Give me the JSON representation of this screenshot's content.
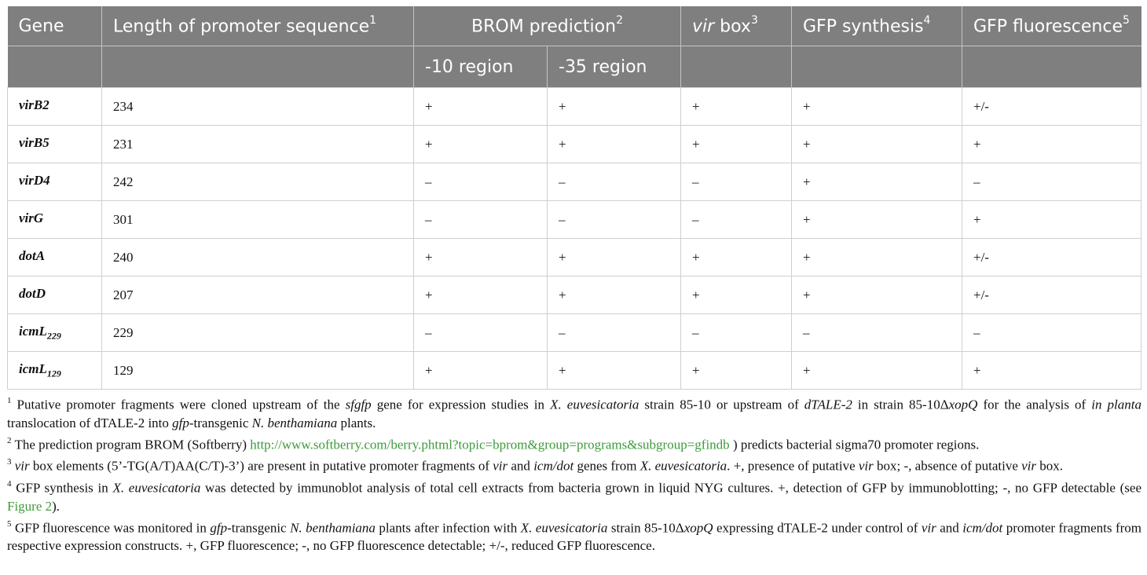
{
  "table": {
    "headers": {
      "gene": "Gene",
      "length": "Length of promoter sequence",
      "length_sup": "1",
      "brom": "BROM prediction",
      "brom_sup": "2",
      "vir_box_italic": "vir",
      "vir_box": " box",
      "vir_box_sup": "3",
      "gfp_synthesis": "GFP synthesis",
      "gfp_synthesis_sup": "4",
      "gfp_fluorescence": "GFP fluorescence",
      "gfp_fluorescence_sup": "5",
      "region_10": "-10 region",
      "region_35": "-35 region"
    },
    "rows": [
      {
        "gene": "virB2",
        "sub": "",
        "length": "234",
        "r10": "+",
        "r35": "+",
        "vir": "+",
        "syn": "+",
        "fluo": "+/-"
      },
      {
        "gene": "virB5",
        "sub": "",
        "length": "231",
        "r10": "+",
        "r35": "+",
        "vir": "+",
        "syn": "+",
        "fluo": "+"
      },
      {
        "gene": "virD4",
        "sub": "",
        "length": "242",
        "r10": "–",
        "r35": "–",
        "vir": "–",
        "syn": "+",
        "fluo": "–"
      },
      {
        "gene": "virG",
        "sub": "",
        "length": "301",
        "r10": "–",
        "r35": "–",
        "vir": "–",
        "syn": "+",
        "fluo": "+"
      },
      {
        "gene": "dotA",
        "sub": "",
        "length": "240",
        "r10": "+",
        "r35": "+",
        "vir": "+",
        "syn": "+",
        "fluo": "+/-"
      },
      {
        "gene": "dotD",
        "sub": "",
        "length": "207",
        "r10": "+",
        "r35": "+",
        "vir": "+",
        "syn": "+",
        "fluo": "+/-"
      },
      {
        "gene": "icmL",
        "sub": "229",
        "length": "229",
        "r10": "–",
        "r35": "–",
        "vir": "–",
        "syn": "–",
        "fluo": "–"
      },
      {
        "gene": "icmL",
        "sub": "129",
        "length": "129",
        "r10": "+",
        "r35": "+",
        "vir": "+",
        "syn": "+",
        "fluo": "+"
      }
    ]
  },
  "footnotes": {
    "n1": {
      "mark": "1",
      "t1": " Putative promoter fragments were cloned upstream of the ",
      "i1": "sfgfp",
      "t2": " gene for expression studies in ",
      "i2": "X. euvesicatoria",
      "t3": " strain 85-10 or upstream of ",
      "i3": "dTALE-2",
      "t4": " in strain 85-10Δ",
      "i4": "xopQ",
      "t5": " for the analysis of ",
      "i5": "in planta",
      "t6": " translocation of dTALE-2 into ",
      "i6": "gfp",
      "t7": "-transgenic ",
      "i7": "N. benthamiana",
      "t8": " plants."
    },
    "n2": {
      "mark": "2",
      "t1": " The prediction program BROM (Softberry) ",
      "link": "http://www.softberry.com/berry.phtml?topic=bprom&group=programs&subgroup=gfindb",
      "t2": " ) predicts bacterial sigma70 promoter regions."
    },
    "n3": {
      "mark": "3",
      "t0": " ",
      "i1": "vir",
      "t1": " box elements (5’-TG(A/T)AA(C/T)-3’) are present in putative promoter fragments of ",
      "i2": "vir",
      "t2": " and ",
      "i3": "icm/dot",
      "t3": " genes from ",
      "i4": "X. euvesicatoria",
      "t4": ". +, presence of putative ",
      "i5": "vir",
      "t5": " box; -, absence of putative ",
      "i6": "vir",
      "t6": " box."
    },
    "n4": {
      "mark": "4",
      "t1": " GFP synthesis in ",
      "i1": "X. euvesicatoria",
      "t2": " was detected by immunoblot analysis of total cell extracts from bacteria grown in liquid NYG cultures. +, detection of GFP by immunoblotting; -, no GFP detectable (see ",
      "link": "Figure 2",
      "t3": ")."
    },
    "n5": {
      "mark": "5",
      "t1": " GFP fluorescence was monitored in ",
      "i1": "gfp",
      "t2": "-transgenic ",
      "i2": "N. benthamiana",
      "t3": " plants after infection with ",
      "i3": "X. euvesicatoria",
      "t4": " strain 85-10Δ",
      "i4": "xopQ",
      "t5": " expressing dTALE-2 under control of ",
      "i5": "vir",
      "t6": " and ",
      "i6": "icm/dot",
      "t7": " promoter fragments from respective expression constructs. +, GFP fluorescence; -, no GFP fluorescence detectable; +/-, reduced GFP fluorescence."
    }
  }
}
